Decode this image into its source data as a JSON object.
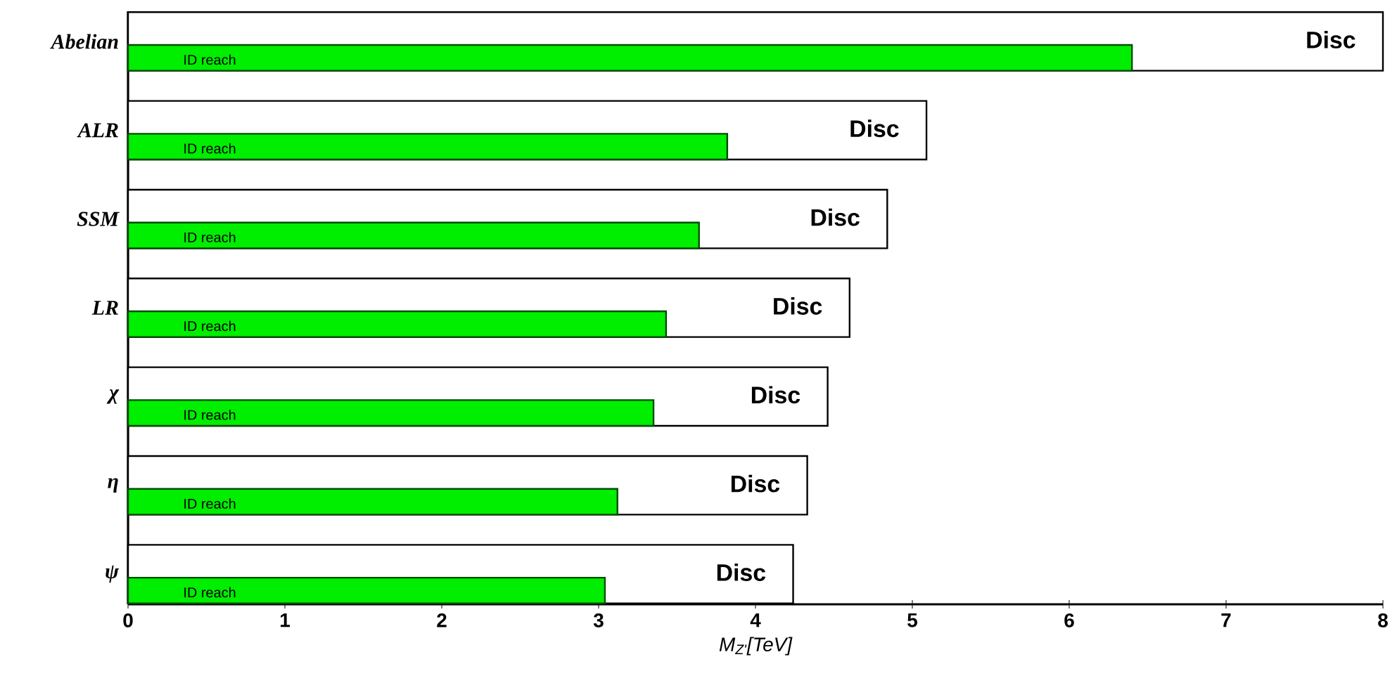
{
  "chart_data": {
    "type": "bar",
    "orientation": "horizontal",
    "xlabel": "M$_{Z'}$[TeV]",
    "categories": [
      "Abelian",
      "ALR",
      "SSM",
      "LR",
      "χ",
      "η",
      "ψ"
    ],
    "series": [
      {
        "name": "Disc",
        "color": "#ffffff",
        "values": [
          8.0,
          5.09,
          4.84,
          4.6,
          4.46,
          4.33,
          4.24
        ]
      },
      {
        "name": "ID reach",
        "color": "#00ee00",
        "values": [
          6.4,
          3.82,
          3.64,
          3.43,
          3.35,
          3.12,
          3.04
        ]
      }
    ],
    "xlim": [
      0,
      8
    ],
    "xticks": [
      0,
      1,
      2,
      3,
      4,
      5,
      6,
      7,
      8
    ],
    "legend": false
  }
}
